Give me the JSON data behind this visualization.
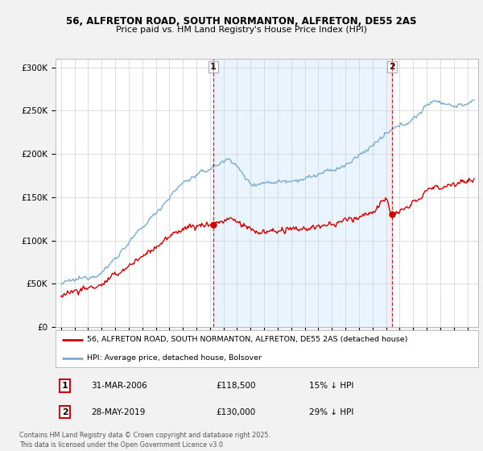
{
  "title1": "56, ALFRETON ROAD, SOUTH NORMANTON, ALFRETON, DE55 2AS",
  "title2": "Price paid vs. HM Land Registry's House Price Index (HPI)",
  "legend_red": "56, ALFRETON ROAD, SOUTH NORMANTON, ALFRETON, DE55 2AS (detached house)",
  "legend_blue": "HPI: Average price, detached house, Bolsover",
  "footnote": "Contains HM Land Registry data © Crown copyright and database right 2025.\nThis data is licensed under the Open Government Licence v3.0.",
  "sale1_label": "1",
  "sale1_date": "31-MAR-2006",
  "sale1_price": "£118,500",
  "sale1_hpi": "15% ↓ HPI",
  "sale2_label": "2",
  "sale2_date": "28-MAY-2019",
  "sale2_price": "£130,000",
  "sale2_hpi": "29% ↓ HPI",
  "marker1_x": 2006.25,
  "marker1_y": 118500,
  "marker2_x": 2019.42,
  "marker2_y": 130000,
  "background_color": "#f2f2f2",
  "plot_bg_color": "#ffffff",
  "red_color": "#cc0000",
  "blue_color": "#7aadcf",
  "shade_color": "#ddeeff",
  "ylim": [
    0,
    310000
  ],
  "xlim_start": 1994.6,
  "xlim_end": 2025.8
}
